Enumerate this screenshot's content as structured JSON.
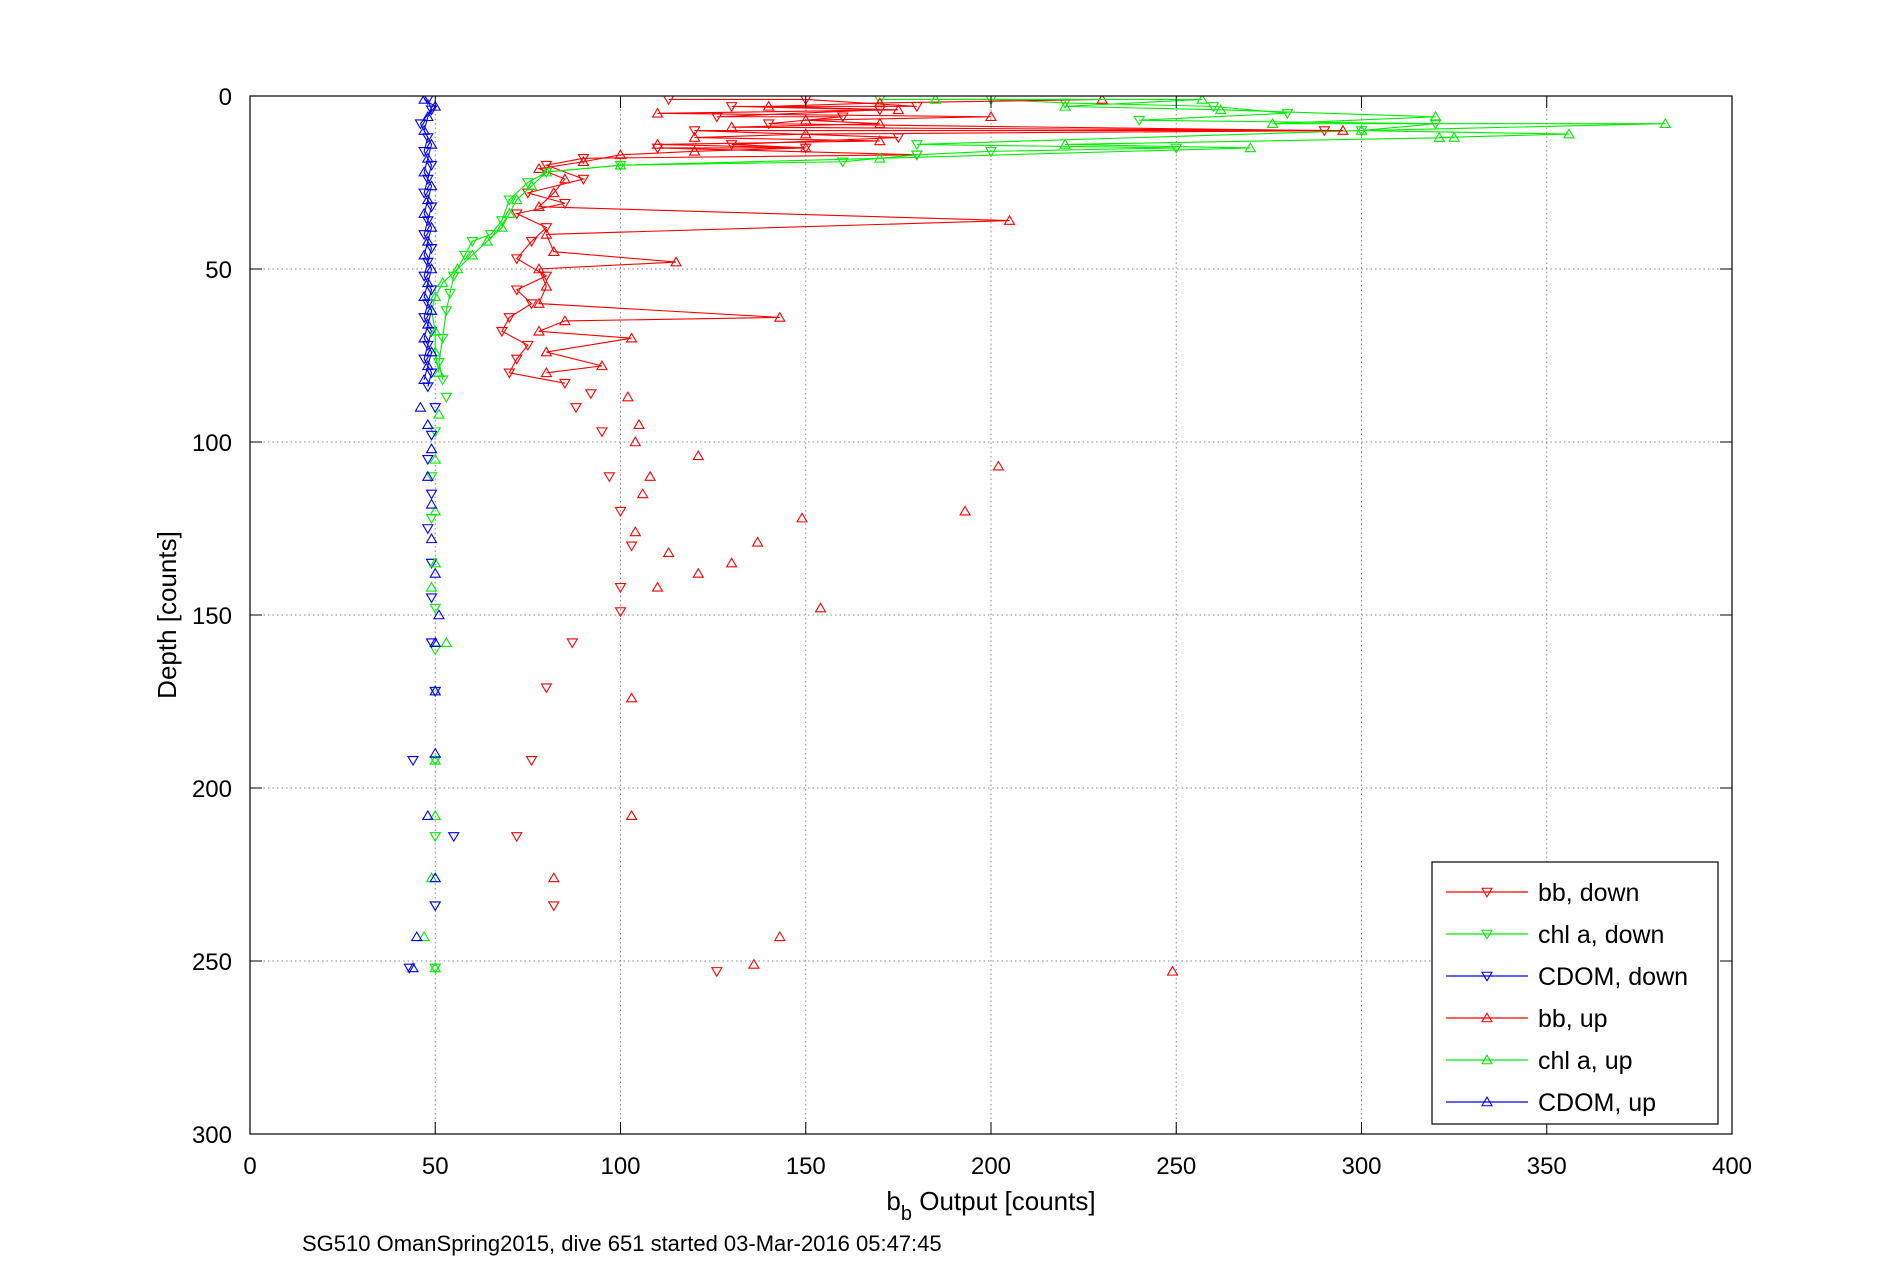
{
  "chart_data": {
    "type": "scatter",
    "xlabel_main": "b",
    "xlabel_sub": "b",
    "xlabel_rest": " Output [counts]",
    "ylabel": "Depth [counts]",
    "caption": "SG510 OmanSpring2015, dive 651 started 03-Mar-2016 05:47:45",
    "xlim": [
      0,
      400
    ],
    "ylim": [
      0,
      300
    ],
    "y_reversed": true,
    "xticks": [
      0,
      50,
      100,
      150,
      200,
      250,
      300,
      350,
      400
    ],
    "yticks": [
      0,
      50,
      100,
      150,
      200,
      250,
      300
    ],
    "grid": true,
    "legend_position": "bottom-right",
    "series": [
      {
        "name": "bb, down",
        "color": "#ff0000",
        "marker": "triangle-down",
        "line": true,
        "points": [
          [
            113,
            1
          ],
          [
            150,
            1
          ],
          [
            180,
            3
          ],
          [
            130,
            3
          ],
          [
            170,
            4
          ],
          [
            126,
            6
          ],
          [
            160,
            6
          ],
          [
            140,
            8
          ],
          [
            290,
            10
          ],
          [
            120,
            10
          ],
          [
            175,
            12
          ],
          [
            130,
            14
          ],
          [
            150,
            15
          ],
          [
            110,
            15
          ],
          [
            180,
            17
          ],
          [
            90,
            18
          ],
          [
            80,
            20
          ],
          [
            90,
            24
          ],
          [
            75,
            28
          ],
          [
            85,
            31
          ],
          [
            72,
            34
          ],
          [
            80,
            38
          ],
          [
            76,
            42
          ],
          [
            72,
            47
          ],
          [
            80,
            52
          ],
          [
            72,
            56
          ],
          [
            76,
            60
          ],
          [
            70,
            64
          ],
          [
            68,
            68
          ],
          [
            75,
            72
          ],
          [
            72,
            76
          ],
          [
            70,
            80
          ],
          [
            85,
            83
          ],
          [
            92,
            86
          ],
          [
            88,
            90
          ],
          [
            95,
            97
          ],
          [
            97,
            110
          ],
          [
            100,
            120
          ],
          [
            103,
            130
          ],
          [
            100,
            142
          ],
          [
            100,
            149
          ],
          [
            87,
            158
          ],
          [
            80,
            171
          ],
          [
            76,
            192
          ],
          [
            72,
            214
          ],
          [
            82,
            234
          ],
          [
            126,
            253
          ]
        ]
      },
      {
        "name": "chl a, down",
        "color": "#00ee00",
        "marker": "triangle-down",
        "line": true,
        "points": [
          [
            170,
            1
          ],
          [
            200,
            1
          ],
          [
            220,
            2
          ],
          [
            260,
            3
          ],
          [
            280,
            5
          ],
          [
            240,
            7
          ],
          [
            320,
            8
          ],
          [
            300,
            10
          ],
          [
            180,
            14
          ],
          [
            250,
            15
          ],
          [
            200,
            16
          ],
          [
            180,
            17
          ],
          [
            160,
            19
          ],
          [
            100,
            20
          ],
          [
            80,
            22
          ],
          [
            75,
            25
          ],
          [
            70,
            30
          ],
          [
            68,
            36
          ],
          [
            65,
            40
          ],
          [
            60,
            42
          ],
          [
            58,
            46
          ],
          [
            55,
            52
          ],
          [
            54,
            57
          ],
          [
            53,
            62
          ],
          [
            52,
            70
          ],
          [
            51,
            77
          ],
          [
            52,
            82
          ],
          [
            53,
            87
          ],
          [
            50,
            97
          ],
          [
            49,
            110
          ],
          [
            49,
            122
          ],
          [
            49,
            135
          ],
          [
            50,
            148
          ],
          [
            50,
            160
          ],
          [
            50,
            172
          ],
          [
            50,
            192
          ],
          [
            50,
            214
          ],
          [
            50,
            234
          ],
          [
            50,
            252
          ]
        ]
      },
      {
        "name": "CDOM, down",
        "color": "#0000ff",
        "marker": "triangle-down",
        "line": true,
        "points": [
          [
            48,
            1
          ],
          [
            49,
            4
          ],
          [
            46,
            8
          ],
          [
            48,
            12
          ],
          [
            47,
            16
          ],
          [
            49,
            20
          ],
          [
            48,
            24
          ],
          [
            47,
            28
          ],
          [
            49,
            32
          ],
          [
            48,
            36
          ],
          [
            47,
            40
          ],
          [
            49,
            44
          ],
          [
            48,
            48
          ],
          [
            47,
            52
          ],
          [
            49,
            56
          ],
          [
            48,
            60
          ],
          [
            47,
            64
          ],
          [
            49,
            68
          ],
          [
            48,
            72
          ],
          [
            47,
            76
          ],
          [
            49,
            80
          ],
          [
            48,
            84
          ],
          [
            50,
            90
          ],
          [
            49,
            98
          ],
          [
            48,
            105
          ],
          [
            49,
            115
          ],
          [
            48,
            125
          ],
          [
            49,
            135
          ],
          [
            49,
            145
          ],
          [
            49,
            158
          ],
          [
            50,
            172
          ],
          [
            44,
            192
          ],
          [
            55,
            214
          ],
          [
            50,
            234
          ],
          [
            43,
            252
          ]
        ]
      },
      {
        "name": "bb, up",
        "color": "#ff0000",
        "marker": "triangle-up",
        "line": true,
        "points": [
          [
            230,
            1
          ],
          [
            170,
            2
          ],
          [
            140,
            3
          ],
          [
            175,
            4
          ],
          [
            110,
            5
          ],
          [
            200,
            6
          ],
          [
            150,
            7
          ],
          [
            170,
            8
          ],
          [
            130,
            9
          ],
          [
            295,
            10
          ],
          [
            150,
            11
          ],
          [
            120,
            12
          ],
          [
            170,
            13
          ],
          [
            110,
            14
          ],
          [
            150,
            15
          ],
          [
            120,
            16
          ],
          [
            100,
            17
          ],
          [
            90,
            19
          ],
          [
            78,
            21
          ],
          [
            85,
            24
          ],
          [
            82,
            28
          ],
          [
            78,
            32
          ],
          [
            205,
            36
          ],
          [
            80,
            40
          ],
          [
            82,
            45
          ],
          [
            115,
            48
          ],
          [
            78,
            50
          ],
          [
            80,
            55
          ],
          [
            78,
            60
          ],
          [
            143,
            64
          ],
          [
            85,
            65
          ],
          [
            78,
            68
          ],
          [
            103,
            70
          ],
          [
            80,
            74
          ],
          [
            95,
            78
          ],
          [
            80,
            80
          ],
          [
            102,
            87
          ],
          [
            105,
            95
          ],
          [
            104,
            100
          ],
          [
            121,
            104
          ],
          [
            202,
            107
          ],
          [
            108,
            110
          ],
          [
            106,
            115
          ],
          [
            149,
            122
          ],
          [
            193,
            120
          ],
          [
            104,
            126
          ],
          [
            137,
            129
          ],
          [
            113,
            132
          ],
          [
            130,
            135
          ],
          [
            121,
            138
          ],
          [
            110,
            142
          ],
          [
            154,
            148
          ],
          [
            103,
            174
          ],
          [
            103,
            208
          ],
          [
            82,
            226
          ],
          [
            143,
            243
          ],
          [
            136,
            251
          ],
          [
            249,
            253
          ]
        ]
      },
      {
        "name": "chl a, up",
        "color": "#00ee00",
        "marker": "triangle-up",
        "line": true,
        "points": [
          [
            185,
            1
          ],
          [
            257,
            1
          ],
          [
            220,
            3
          ],
          [
            262,
            4
          ],
          [
            320,
            6
          ],
          [
            276,
            8
          ],
          [
            382,
            8
          ],
          [
            300,
            10
          ],
          [
            356,
            11
          ],
          [
            321,
            12
          ],
          [
            325,
            12
          ],
          [
            220,
            14
          ],
          [
            270,
            15
          ],
          [
            170,
            18
          ],
          [
            100,
            20
          ],
          [
            80,
            22
          ],
          [
            76,
            26
          ],
          [
            72,
            30
          ],
          [
            70,
            34
          ],
          [
            68,
            38
          ],
          [
            64,
            42
          ],
          [
            60,
            46
          ],
          [
            56,
            50
          ],
          [
            52,
            54
          ],
          [
            50,
            58
          ],
          [
            49,
            62
          ],
          [
            50,
            68
          ],
          [
            50,
            74
          ],
          [
            51,
            80
          ],
          [
            51,
            92
          ],
          [
            50,
            105
          ],
          [
            50,
            120
          ],
          [
            50,
            135
          ],
          [
            49,
            142
          ],
          [
            53,
            158
          ],
          [
            50,
            172
          ],
          [
            50,
            192
          ],
          [
            50,
            208
          ],
          [
            49,
            226
          ],
          [
            47,
            243
          ],
          [
            50,
            252
          ]
        ]
      },
      {
        "name": "CDOM, up",
        "color": "#0000ff",
        "marker": "triangle-up",
        "line": true,
        "points": [
          [
            47,
            1
          ],
          [
            50,
            3
          ],
          [
            48,
            6
          ],
          [
            47,
            10
          ],
          [
            49,
            14
          ],
          [
            48,
            18
          ],
          [
            47,
            22
          ],
          [
            49,
            26
          ],
          [
            48,
            30
          ],
          [
            47,
            34
          ],
          [
            49,
            38
          ],
          [
            48,
            42
          ],
          [
            47,
            46
          ],
          [
            49,
            50
          ],
          [
            48,
            54
          ],
          [
            47,
            58
          ],
          [
            49,
            62
          ],
          [
            48,
            66
          ],
          [
            47,
            70
          ],
          [
            49,
            74
          ],
          [
            48,
            78
          ],
          [
            47,
            82
          ],
          [
            46,
            90
          ],
          [
            48,
            95
          ],
          [
            49,
            102
          ],
          [
            48,
            110
          ],
          [
            49,
            118
          ],
          [
            49,
            128
          ],
          [
            50,
            138
          ],
          [
            51,
            150
          ],
          [
            50,
            158
          ],
          [
            50,
            172
          ],
          [
            50,
            190
          ],
          [
            48,
            208
          ],
          [
            50,
            226
          ],
          [
            45,
            243
          ],
          [
            44,
            252
          ]
        ]
      }
    ]
  }
}
